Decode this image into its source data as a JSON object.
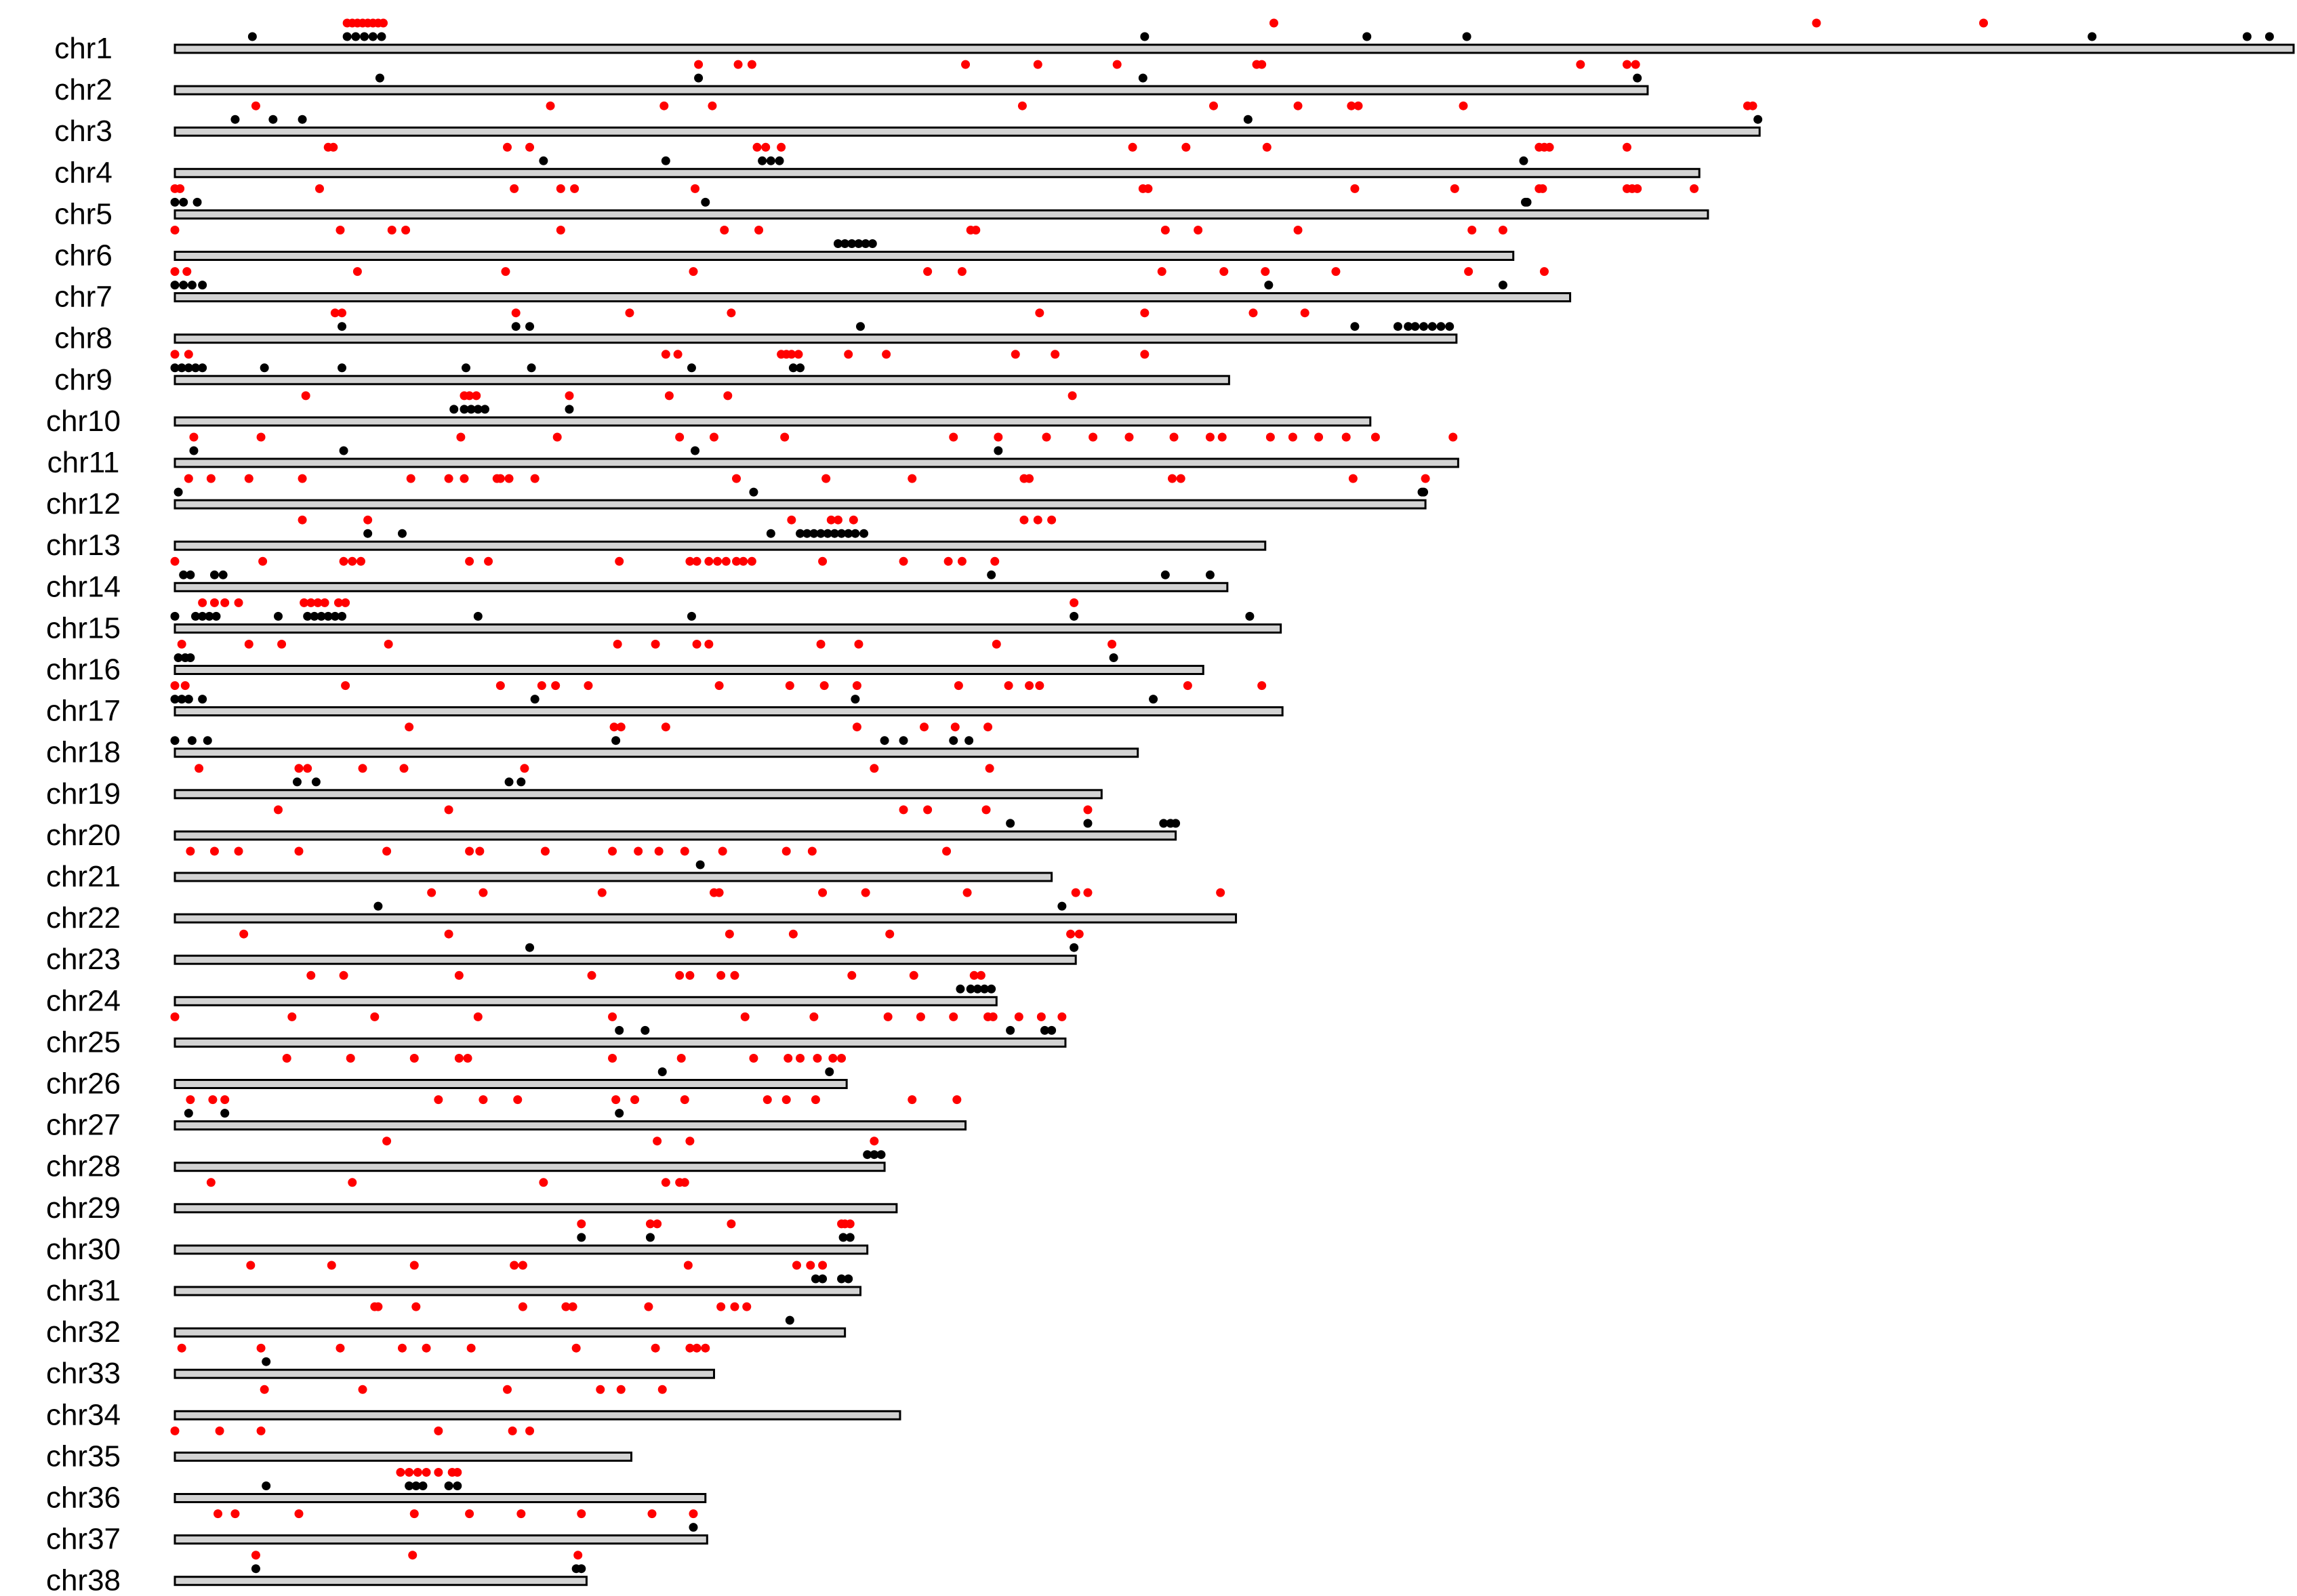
{
  "chart_data": {
    "type": "scatter",
    "title": "",
    "xlabel": "",
    "ylabel": "",
    "grid": false,
    "legend": "none",
    "colors": {
      "series_a": "#ff0000",
      "series_b": "#000000",
      "bar_fill": "#d3d3d3",
      "bar_outline": "#000000"
    },
    "xlim": [
      0,
      123
    ],
    "chromosomes": [
      {
        "name": "chr1",
        "length": 123
      },
      {
        "name": "chr2",
        "length": 85.5
      },
      {
        "name": "chr3",
        "length": 92
      },
      {
        "name": "chr4",
        "length": 88.5
      },
      {
        "name": "chr5",
        "length": 89
      },
      {
        "name": "chr6",
        "length": 77.7
      },
      {
        "name": "chr7",
        "length": 81
      },
      {
        "name": "chr8",
        "length": 74.4
      },
      {
        "name": "chr9",
        "length": 61.2
      },
      {
        "name": "chr10",
        "length": 69.4
      },
      {
        "name": "chr11",
        "length": 74.5
      },
      {
        "name": "chr12",
        "length": 72.6
      },
      {
        "name": "chr13",
        "length": 63.3
      },
      {
        "name": "chr14",
        "length": 61.1
      },
      {
        "name": "chr15",
        "length": 64.2
      },
      {
        "name": "chr16",
        "length": 59.7
      },
      {
        "name": "chr17",
        "length": 64.3
      },
      {
        "name": "chr18",
        "length": 55.9
      },
      {
        "name": "chr19",
        "length": 53.8
      },
      {
        "name": "chr20",
        "length": 58.1
      },
      {
        "name": "chr21",
        "length": 50.9
      },
      {
        "name": "chr22",
        "length": 61.6
      },
      {
        "name": "chr23",
        "length": 52.3
      },
      {
        "name": "chr24",
        "length": 47.7
      },
      {
        "name": "chr25",
        "length": 51.7
      },
      {
        "name": "chr26",
        "length": 39
      },
      {
        "name": "chr27",
        "length": 45.9
      },
      {
        "name": "chr28",
        "length": 41.2
      },
      {
        "name": "chr29",
        "length": 41.9
      },
      {
        "name": "chr30",
        "length": 40.2
      },
      {
        "name": "chr31",
        "length": 39.8
      },
      {
        "name": "chr32",
        "length": 38.9
      },
      {
        "name": "chr33",
        "length": 31.3
      },
      {
        "name": "chr34",
        "length": 42.1
      },
      {
        "name": "chr35",
        "length": 26.5
      },
      {
        "name": "chr36",
        "length": 30.8
      },
      {
        "name": "chr37",
        "length": 30.9
      },
      {
        "name": "chr38",
        "length": 23.9
      }
    ],
    "series": [
      {
        "color": "#ff0000",
        "positions": [
          [
            10,
            10.3,
            10.6,
            10.9,
            11.2,
            11.5,
            11.8,
            12.1,
            63.8,
            95.3,
            105
          ],
          [
            30.4,
            32.7,
            33.5,
            45.9,
            50.1,
            54.7,
            62.8,
            63.1,
            81.6,
            84.3,
            84.8
          ],
          [
            4.7,
            21.8,
            28.4,
            31.2,
            49.2,
            60.3,
            65.2,
            68.3,
            68.7,
            74.8,
            91.3,
            91.6
          ],
          [
            8.9,
            9.2,
            19.3,
            20.6,
            33.8,
            34.3,
            35.2,
            55.6,
            58.7,
            63.4,
            79.2,
            79.5,
            79.8,
            84.3
          ],
          [
            0,
            0.3,
            8.4,
            19.7,
            22.4,
            23.2,
            30.2,
            56.2,
            56.5,
            68.5,
            74.3,
            79.2,
            79.4,
            84.3,
            84.6,
            84.9,
            88.2
          ],
          [
            0,
            9.6,
            12.6,
            13.4,
            22.4,
            31.9,
            33.9,
            46.2,
            46.5,
            57.5,
            59.4,
            65.2,
            75.3,
            77.1
          ],
          [
            0,
            0.7,
            10.6,
            19.2,
            30.1,
            43.7,
            45.7,
            57.3,
            60.9,
            63.3,
            67.4,
            75.1,
            79.5
          ],
          [
            9.3,
            9.7,
            19.8,
            26.4,
            32.3,
            50.2,
            56.3,
            62.6,
            65.6
          ],
          [
            0,
            0.8,
            28.5,
            29.2,
            35.2,
            35.5,
            35.8,
            36.2,
            39.1,
            41.3,
            48.8,
            51.1,
            56.3
          ],
          [
            7.6,
            16.8,
            17.1,
            17.5,
            22.9,
            28.7,
            32.1,
            52.1
          ],
          [
            1.1,
            5,
            16.6,
            22.2,
            29.3,
            31.3,
            35.4,
            45.2,
            47.8,
            50.6,
            53.3,
            55.4,
            58,
            60.1,
            60.8,
            63.6,
            64.9,
            66.4,
            68,
            69.7,
            74.2
          ],
          [
            0.8,
            2.1,
            4.3,
            7.4,
            13.7,
            15.9,
            16.8,
            18.7,
            18.9,
            19.4,
            20.9,
            32.6,
            37.8,
            42.8,
            49.3,
            49.6,
            57.9,
            58.4,
            68.4,
            72.6
          ],
          [
            7.4,
            11.2,
            35.8,
            38.1,
            38.5,
            39.4,
            49.3,
            50.1,
            50.9
          ],
          [
            0,
            5.1,
            9.8,
            10.3,
            10.8,
            17.1,
            18.2,
            25.8,
            29.9,
            30.3,
            31,
            31.5,
            32,
            32.6,
            33,
            33.5,
            37.6,
            42.3,
            44.9,
            45.7,
            47.6
          ],
          [
            1.6,
            2.3,
            2.9,
            3.7,
            7.5,
            7.9,
            8.3,
            8.7,
            9.5,
            9.9,
            52.2
          ],
          [
            0.4,
            4.3,
            6.2,
            12.4,
            25.7,
            27.9,
            30.3,
            31,
            37.5,
            39.7,
            47.7,
            54.4
          ],
          [
            0,
            0.6,
            9.9,
            18.9,
            21.3,
            22.1,
            24,
            31.6,
            35.7,
            37.7,
            39.6,
            45.5,
            48.4,
            49.6,
            50.2,
            58.8,
            63.1
          ],
          [
            13.6,
            25.5,
            25.9,
            28.5,
            39.6,
            43.5,
            45.3,
            47.2
          ],
          [
            1.4,
            7.2,
            7.7,
            10.9,
            13.3,
            20.3,
            40.6,
            47.3
          ],
          [
            6,
            15.9,
            42.3,
            43.7,
            47.1,
            53
          ],
          [
            0.9,
            2.3,
            3.7,
            7.2,
            12.3,
            17.1,
            17.7,
            21.5,
            25.4,
            26.9,
            28.1,
            29.6,
            31.8,
            35.5,
            37,
            44.8
          ],
          [
            14.9,
            17.9,
            24.8,
            31.3,
            31.6,
            37.6,
            40.1,
            46,
            52.3,
            53,
            60.7
          ],
          [
            4,
            15.9,
            32.2,
            35.9,
            41.5,
            52,
            52.5
          ],
          [
            7.9,
            9.8,
            16.5,
            24.2,
            29.3,
            29.9,
            31.7,
            32.5,
            39.3,
            42.9,
            46.4,
            46.8
          ],
          [
            0,
            6.8,
            11.6,
            17.6,
            25.4,
            33.1,
            37.1,
            41.4,
            43.3,
            45.2,
            47.2,
            47.5,
            49,
            50.3,
            51.5
          ],
          [
            6.5,
            10.2,
            13.9,
            16.5,
            17,
            25.4,
            29.4,
            33.6,
            35.6,
            36.3,
            37.3,
            38.2,
            38.7
          ],
          [
            0.9,
            2.2,
            2.9,
            15.3,
            17.9,
            19.9,
            25.6,
            26.7,
            29.6,
            34.4,
            35.5,
            37.2,
            42.8,
            45.4
          ],
          [
            12.3,
            28,
            29.9,
            40.6
          ],
          [
            2.1,
            10.3,
            21.4,
            28.5,
            29.3,
            29.6
          ],
          [
            23.6,
            27.6,
            28,
            32.3,
            38.7,
            38.9,
            39.2
          ],
          [
            4.4,
            9.1,
            13.9,
            19.7,
            20.2,
            29.8,
            36.1,
            36.9,
            37.6
          ],
          [
            11.6,
            11.8,
            14,
            20.2,
            22.7,
            23.1,
            27.5,
            31.7,
            32.5,
            33.2
          ],
          [
            0.4,
            5,
            9.6,
            13.2,
            14.6,
            17.2,
            23.3,
            27.9,
            29.9,
            30.3,
            30.8
          ],
          [
            5.2,
            10.9,
            19.3,
            24.7,
            25.9,
            28.3
          ],
          [
            0,
            2.6,
            5,
            15.3,
            19.6,
            20.6
          ],
          [
            13.1,
            13.6,
            14.1,
            14.6,
            15.3,
            16.1,
            16.4
          ],
          [
            2.5,
            3.5,
            7.2,
            13.9,
            17.1,
            20.1,
            23.6,
            27.7,
            30.1
          ],
          [
            4.7,
            13.8,
            23.4
          ]
        ]
      },
      {
        "color": "#000000",
        "positions": [
          [
            4.5,
            10,
            10.5,
            11,
            11.5,
            12,
            56.3,
            69.2,
            75,
            111.3,
            120.3,
            121.6
          ],
          [
            11.9,
            30.4,
            56.2,
            84.9
          ],
          [
            3.5,
            5.7,
            7.4,
            62.3,
            91.9
          ],
          [
            21.4,
            28.5,
            34.1,
            34.6,
            35.1,
            78.3
          ],
          [
            0,
            0.5,
            1.3,
            30.8,
            78.4,
            78.5
          ],
          [
            38.5,
            38.9,
            39.3,
            39.7,
            40.1,
            40.5
          ],
          [
            0,
            0.5,
            1,
            1.6,
            63.5,
            77.1
          ],
          [
            9.7,
            19.8,
            20.6,
            39.8,
            68.5,
            71,
            71.6,
            72,
            72.5,
            73,
            73.5,
            74
          ],
          [
            0,
            0.4,
            0.8,
            1.2,
            1.6,
            5.2,
            9.7,
            16.9,
            20.7,
            30,
            35.9,
            36.3
          ],
          [
            16.2,
            16.8,
            17.2,
            17.6,
            18,
            22.9
          ],
          [
            1.1,
            9.8,
            30.2,
            47.8
          ],
          [
            0.2,
            33.6,
            72.4,
            72.5
          ],
          [
            11.2,
            13.2,
            34.6,
            36.3,
            36.7,
            37.1,
            37.5,
            37.9,
            38.3,
            38.7,
            39.1,
            39.5,
            40
          ],
          [
            0.5,
            0.9,
            2.3,
            2.8,
            47.4,
            57.5,
            60.1
          ],
          [
            0,
            1.2,
            1.6,
            2,
            2.4,
            6,
            7.7,
            8.1,
            8.5,
            8.9,
            9.3,
            9.7,
            17.6,
            30,
            52.2,
            62.4
          ],
          [
            0.2,
            0.6,
            0.9,
            54.5
          ],
          [
            0,
            0.4,
            0.8,
            1.6,
            20.9,
            39.5,
            56.8
          ],
          [
            0,
            1,
            1.9,
            25.6,
            41.2,
            42.3,
            45.2,
            46.1
          ],
          [
            7.1,
            8.2,
            19.4,
            20.1
          ],
          [
            48.5,
            53,
            57.4,
            57.8,
            58.1
          ],
          [
            30.5
          ],
          [
            11.8,
            51.5
          ],
          [
            20.6,
            52.2
          ],
          [
            45.6,
            46.2,
            46.6,
            47,
            47.4
          ],
          [
            25.8,
            27.3,
            48.5,
            50.5,
            50.9
          ],
          [
            28.3,
            38
          ],
          [
            0.8,
            2.9,
            25.8
          ],
          [
            40.2,
            40.6,
            41
          ],
          [],
          [
            23.6,
            27.6,
            38.8,
            39.2
          ],
          [
            37.2,
            37.6,
            38.7,
            39.1
          ],
          [
            35.7
          ],
          [
            5.3
          ],
          [],
          [],
          [
            5.3,
            13.6,
            14,
            14.4,
            15.9,
            16.4
          ],
          [
            30.1
          ],
          [
            4.7,
            23.3,
            23.6
          ]
        ]
      }
    ]
  }
}
